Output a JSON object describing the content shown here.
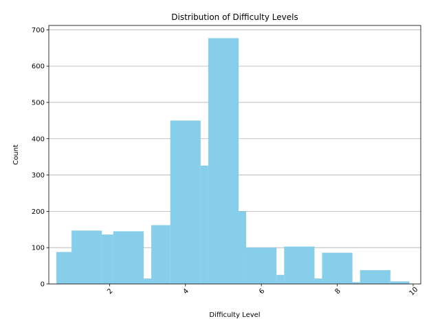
{
  "chart_data": {
    "type": "bar",
    "title": "Distribution of Difficulty Levels",
    "xlabel": "Difficulty Level",
    "ylabel": "Count",
    "bar_color": "#87ceeb",
    "grid": "y-major",
    "xlim": [
      0.4,
      10.2
    ],
    "ylim": [
      0,
      712
    ],
    "x_ticks": [
      2,
      4,
      6,
      8,
      10
    ],
    "x_tick_labels": [
      "2",
      "4",
      "6",
      "8",
      "10"
    ],
    "x_tick_rotation": 45,
    "y_ticks": [
      0,
      100,
      200,
      300,
      400,
      500,
      600,
      700
    ],
    "y_tick_labels": [
      "0",
      "100",
      "200",
      "300",
      "400",
      "500",
      "600",
      "700"
    ],
    "bars": [
      {
        "x0": 0.6,
        "x1": 1.1,
        "value": 88
      },
      {
        "x0": 1.0,
        "x1": 1.8,
        "value": 147
      },
      {
        "x0": 1.8,
        "x1": 2.1,
        "value": 136
      },
      {
        "x0": 2.1,
        "x1": 2.9,
        "value": 145
      },
      {
        "x0": 2.9,
        "x1": 3.1,
        "value": 15
      },
      {
        "x0": 3.1,
        "x1": 3.6,
        "value": 162
      },
      {
        "x0": 3.6,
        "x1": 4.4,
        "value": 450
      },
      {
        "x0": 4.4,
        "x1": 4.6,
        "value": 326
      },
      {
        "x0": 4.6,
        "x1": 5.4,
        "value": 677
      },
      {
        "x0": 5.4,
        "x1": 5.6,
        "value": 200
      },
      {
        "x0": 5.6,
        "x1": 6.4,
        "value": 100
      },
      {
        "x0": 6.4,
        "x1": 6.6,
        "value": 25
      },
      {
        "x0": 6.6,
        "x1": 7.4,
        "value": 103
      },
      {
        "x0": 7.4,
        "x1": 7.6,
        "value": 15
      },
      {
        "x0": 7.6,
        "x1": 8.4,
        "value": 86
      },
      {
        "x0": 8.4,
        "x1": 8.6,
        "value": 5
      },
      {
        "x0": 8.6,
        "x1": 9.4,
        "value": 38
      },
      {
        "x0": 9.4,
        "x1": 9.9,
        "value": 7
      }
    ]
  }
}
